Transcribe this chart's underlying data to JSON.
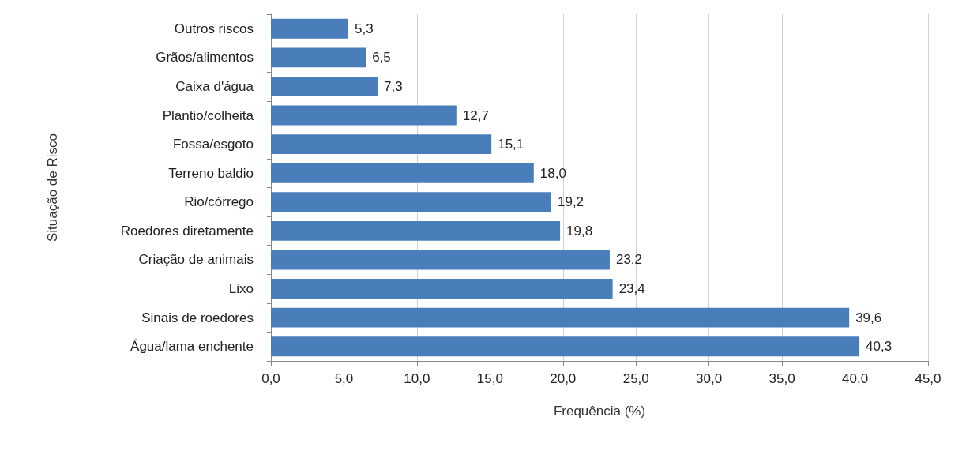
{
  "chart_data": {
    "type": "bar",
    "orientation": "horizontal",
    "xlabel": "Frequência (%)",
    "ylabel": "Situação de Risco",
    "categories": [
      "Outros riscos",
      "Grãos/alimentos",
      "Caixa d'água",
      "Plantio/colheita",
      "Fossa/esgoto",
      "Terreno baldio",
      "Rio/córrego",
      "Roedores diretamente",
      "Criação de animais",
      "Lixo",
      "Sinais de roedores",
      "Água/lama enchente"
    ],
    "values": [
      5.3,
      6.5,
      7.3,
      12.7,
      15.1,
      18.0,
      19.2,
      19.8,
      23.2,
      23.4,
      39.6,
      40.3
    ],
    "value_labels": [
      "5,3",
      "6,5",
      "7,3",
      "12,7",
      "15,1",
      "18,0",
      "19,2",
      "19,8",
      "23,2",
      "23,4",
      "39,6",
      "40,3"
    ],
    "color": "#4a7ebb",
    "xlim": [
      0,
      45
    ],
    "xticks": [
      {
        "value": 0,
        "label": "0,0"
      },
      {
        "value": 5,
        "label": "5,0"
      },
      {
        "value": 10,
        "label": "10,0"
      },
      {
        "value": 15,
        "label": "15,0"
      },
      {
        "value": 20,
        "label": "20,0"
      },
      {
        "value": 25,
        "label": "25,0"
      },
      {
        "value": 30,
        "label": "30,0"
      },
      {
        "value": 35,
        "label": "35,0"
      },
      {
        "value": 40,
        "label": "40,0"
      },
      {
        "value": 45,
        "label": "45,0"
      }
    ],
    "grid": "x"
  }
}
